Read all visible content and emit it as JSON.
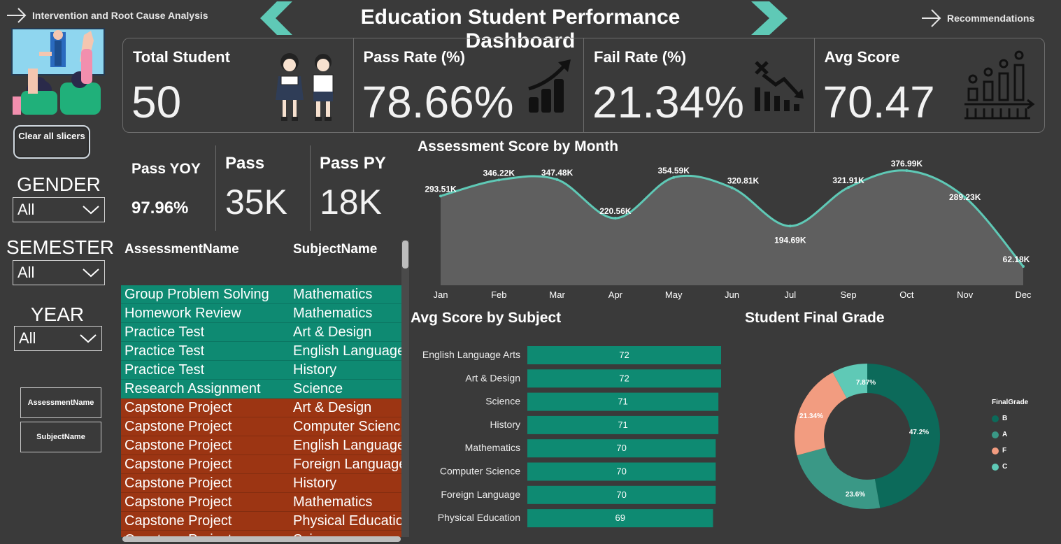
{
  "nav": {
    "left_link": "Intervention and Root Cause Analysis",
    "right_link": "Recommendations"
  },
  "title": "Education Student Performance Dashboard",
  "colors": {
    "accent_teal": "#5fc9b6",
    "pass_row": "#0e8a72",
    "fail_row": "#9c3513",
    "bar": "#0e8a72",
    "background": "#3a3a3a"
  },
  "kpis": [
    {
      "label": "Total Student",
      "value": "50",
      "icon": "students-icon"
    },
    {
      "label": "Pass Rate (%)",
      "value": "78.66%",
      "icon": "growth-chart-icon"
    },
    {
      "label": "Fail Rate (%)",
      "value": "21.34%",
      "icon": "decline-chart-icon"
    },
    {
      "label": "Avg Score",
      "value": "70.47",
      "icon": "bar-graph-icon"
    }
  ],
  "clear_button": "Clear all slicers",
  "slicers": [
    {
      "title": "GENDER",
      "value": "All"
    },
    {
      "title": "SEMESTER",
      "value": "All"
    },
    {
      "title": "YEAR",
      "value": "All"
    }
  ],
  "field_buttons": [
    "AssessmentName",
    "SubjectName"
  ],
  "mini_kpis": {
    "pass_yoy_label": "Pass YOY",
    "pass_yoy_value": "97.96%",
    "pass_label": "Pass",
    "pass_value": "35K",
    "pass_py_label": "Pass PY",
    "pass_py_value": "18K"
  },
  "table": {
    "headers": [
      "AssessmentName",
      "SubjectName"
    ],
    "rows": [
      {
        "assessment": "Group Problem Solving",
        "subject": "Mathematics",
        "status": "pass"
      },
      {
        "assessment": "Homework Review",
        "subject": "Mathematics",
        "status": "pass"
      },
      {
        "assessment": "Practice Test",
        "subject": "Art & Design",
        "status": "pass"
      },
      {
        "assessment": "Practice Test",
        "subject": "English Language",
        "status": "pass"
      },
      {
        "assessment": "Practice Test",
        "subject": "History",
        "status": "pass"
      },
      {
        "assessment": "Research Assignment",
        "subject": "Science",
        "status": "pass"
      },
      {
        "assessment": "Capstone Project",
        "subject": "Art & Design",
        "status": "fail"
      },
      {
        "assessment": "Capstone Project",
        "subject": "Computer Scienc",
        "status": "fail"
      },
      {
        "assessment": "Capstone Project",
        "subject": "English Language",
        "status": "fail"
      },
      {
        "assessment": "Capstone Project",
        "subject": "Foreign Language",
        "status": "fail"
      },
      {
        "assessment": "Capstone Project",
        "subject": "History",
        "status": "fail"
      },
      {
        "assessment": "Capstone Project",
        "subject": "Mathematics",
        "status": "fail"
      },
      {
        "assessment": "Capstone Project",
        "subject": "Physical Educatio",
        "status": "fail"
      },
      {
        "assessment": "Capstone Project",
        "subject": "Science",
        "status": "fail"
      }
    ]
  },
  "chart_data": [
    {
      "type": "area",
      "title": "Assessment Score by Month",
      "categories": [
        "Jan",
        "Feb",
        "Mar",
        "Apr",
        "May",
        "Jun",
        "Jul",
        "Sep",
        "Oct",
        "Nov",
        "Dec"
      ],
      "values": [
        293.51,
        346.22,
        347.48,
        220.56,
        354.59,
        320.81,
        194.69,
        321.91,
        376.99,
        289.23,
        62.18
      ],
      "data_labels": [
        "293.51K",
        "346.22K",
        "347.48K",
        "220.56K",
        "354.59K",
        "320.81K",
        "194.69K",
        "321.91K",
        "376.99K",
        "289.23K",
        "62.18K"
      ],
      "xlabel": "",
      "ylabel": "",
      "line_color": "#5fc9b6",
      "fill_color": "#5f5f5f"
    },
    {
      "type": "bar",
      "title": "Avg Score by Subject",
      "categories": [
        "English Language Arts",
        "Art & Design",
        "Science",
        "History",
        "Mathematics",
        "Computer Science",
        "Foreign Language",
        "Physical Education"
      ],
      "values": [
        72,
        72,
        71,
        71,
        70,
        70,
        70,
        69
      ],
      "bar_color": "#0e8a72"
    },
    {
      "type": "pie",
      "title": "Student Final Grade",
      "legend_title": "FinalGrade",
      "legend_placement": "right",
      "slices": [
        {
          "label": "B",
          "value": 47.2,
          "display": "47.2%",
          "color": "#0c6a5a"
        },
        {
          "label": "A",
          "value": 23.6,
          "display": "23.6%",
          "color": "#3a9886"
        },
        {
          "label": "F",
          "value": 21.34,
          "display": "21.34%",
          "color": "#f29c80"
        },
        {
          "label": "C",
          "value": 7.87,
          "display": "7.87%",
          "color": "#5fc9b6"
        }
      ]
    }
  ]
}
